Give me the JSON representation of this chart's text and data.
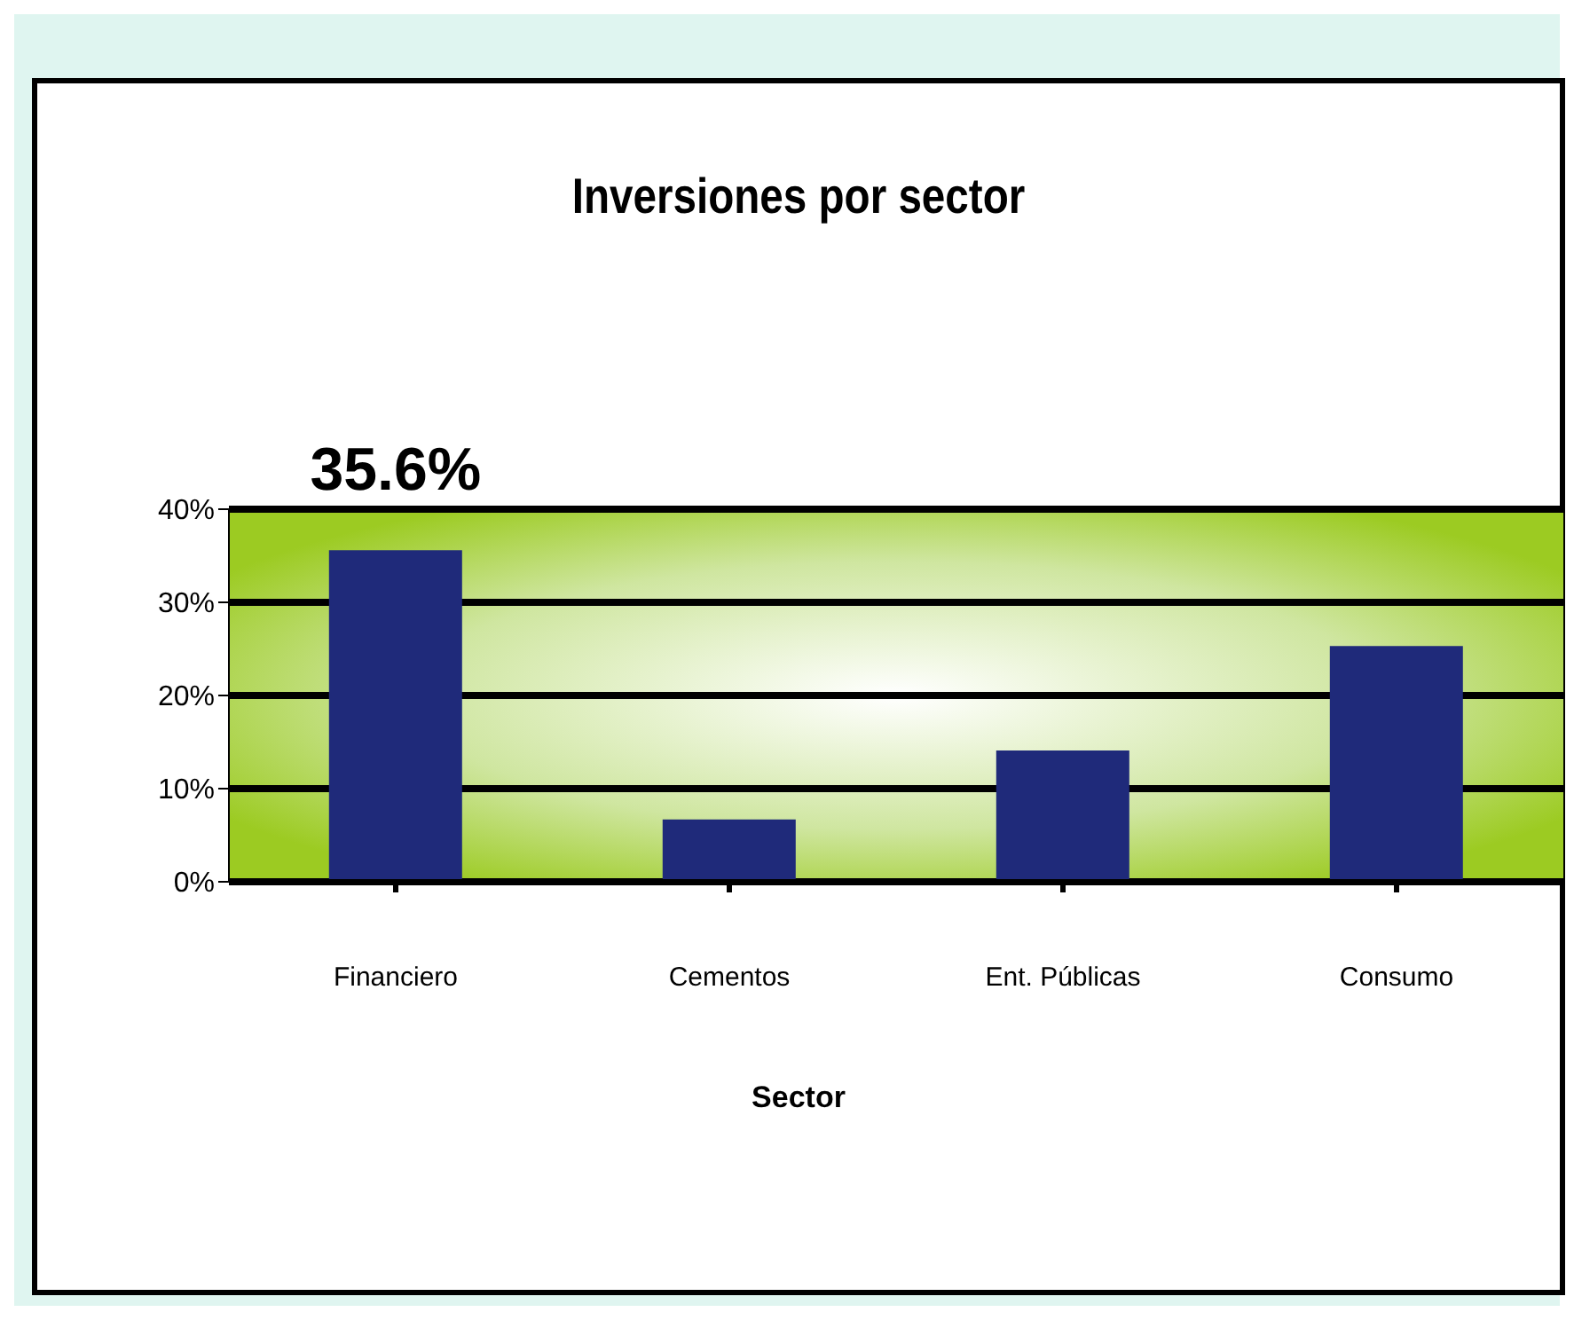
{
  "chart_data": {
    "type": "bar",
    "title": "Inversiones por sector",
    "xlabel": "Sector",
    "categories": [
      "Financiero",
      "Cementos",
      "Ent. Públicas",
      "Consumo"
    ],
    "values": [
      35.6,
      6.7,
      14.1,
      25.3
    ],
    "color": "#1f2a7a",
    "value_labels": [
      "35.6%",
      null,
      null,
      null
    ],
    "ylim": [
      0,
      40
    ],
    "yticks": [
      {
        "value": 0,
        "label": "0%"
      },
      {
        "value": 10,
        "label": "10%"
      },
      {
        "value": 20,
        "label": "20%"
      },
      {
        "value": 30,
        "label": "30%"
      },
      {
        "value": 40,
        "label": "40%"
      }
    ],
    "grid": "y"
  }
}
